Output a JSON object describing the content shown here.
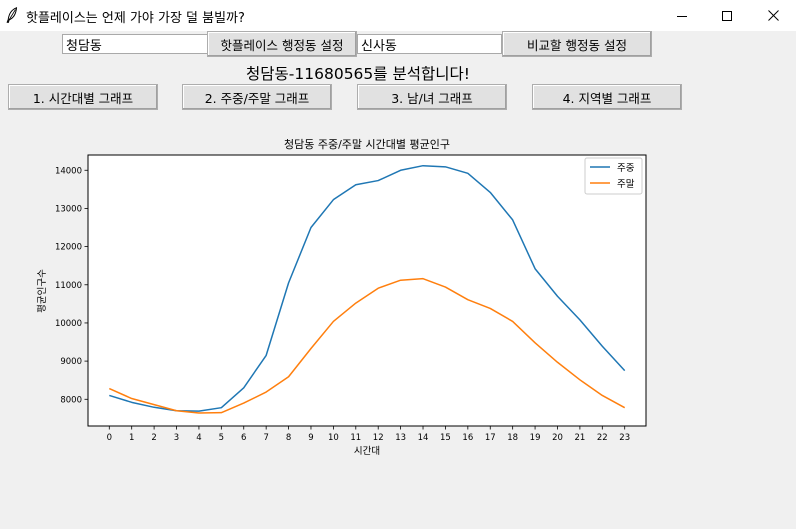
{
  "window": {
    "title": "핫플레이스는 언제 가야 가장 덜 붐빌까?",
    "icons": [
      "feather-icon",
      "minimize-icon",
      "maximize-icon",
      "close-icon"
    ]
  },
  "controls": {
    "hotplace_input_value": "청담동",
    "hotplace_button_label": "핫플레이스 행정동 설정",
    "compare_input_value": "신사동",
    "compare_button_label": "비교할 행정동 설정"
  },
  "heading": "청담동-11680565를 분석합니다!",
  "graph_buttons": [
    "1. 시간대별 그래프",
    "2. 주중/주말 그래프",
    "3. 남/녀 그래프",
    "4. 지역별 그래프"
  ],
  "colors": {
    "weekday": "#1f77b4",
    "weekend": "#ff7f0e"
  },
  "chart_data": {
    "type": "line",
    "title": "청담동 주중/주말 시간대별 평균인구",
    "xlabel": "시간대",
    "ylabel": "평균인구수",
    "x": [
      0,
      1,
      2,
      3,
      4,
      5,
      6,
      7,
      8,
      9,
      10,
      11,
      12,
      13,
      14,
      15,
      16,
      17,
      18,
      19,
      20,
      21,
      22,
      23
    ],
    "xticks": [
      "0",
      "1",
      "2",
      "3",
      "4",
      "5",
      "6",
      "7",
      "8",
      "9",
      "10",
      "11",
      "12",
      "13",
      "14",
      "15",
      "16",
      "17",
      "18",
      "19",
      "20",
      "21",
      "22",
      "23"
    ],
    "yticks": [
      "8000",
      "9000",
      "10000",
      "11000",
      "12000",
      "13000",
      "14000"
    ],
    "ylim": [
      7300,
      14400
    ],
    "grid": false,
    "legend_position": "top-right",
    "series": [
      {
        "name": "주중",
        "color": "#1f77b4",
        "values": [
          8100,
          7920,
          7790,
          7700,
          7690,
          7780,
          8300,
          9150,
          11050,
          12500,
          13230,
          13620,
          13730,
          14000,
          14120,
          14090,
          13920,
          13420,
          12700,
          11420,
          10700,
          10080,
          9390,
          8750
        ]
      },
      {
        "name": "주말",
        "color": "#ff7f0e",
        "values": [
          8280,
          8020,
          7860,
          7700,
          7640,
          7650,
          7900,
          8190,
          8590,
          9330,
          10040,
          10520,
          10910,
          11120,
          11160,
          10940,
          10610,
          10380,
          10040,
          9480,
          8970,
          8510,
          8100,
          7780
        ]
      }
    ]
  }
}
